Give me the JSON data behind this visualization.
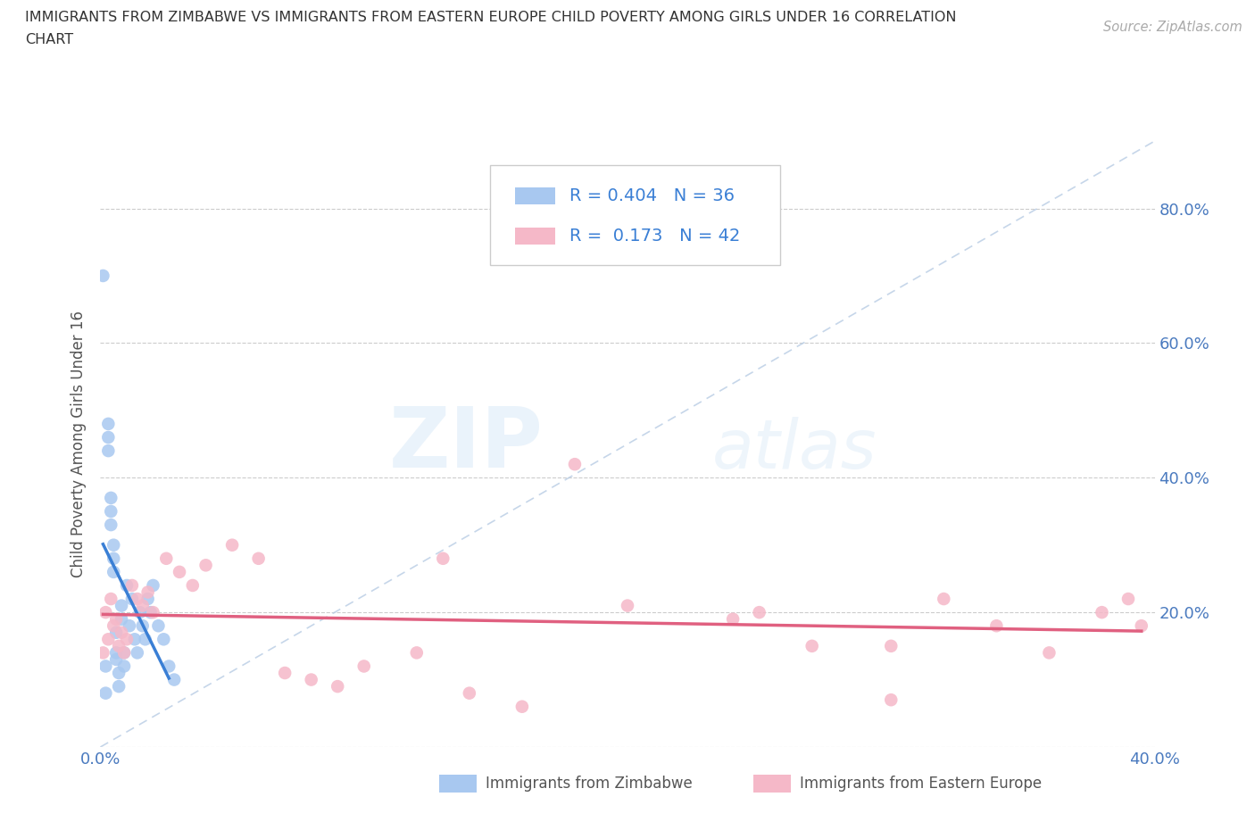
{
  "title_line1": "IMMIGRANTS FROM ZIMBABWE VS IMMIGRANTS FROM EASTERN EUROPE CHILD POVERTY AMONG GIRLS UNDER 16 CORRELATION",
  "title_line2": "CHART",
  "source": "Source: ZipAtlas.com",
  "ylabel": "Child Poverty Among Girls Under 16",
  "xlim": [
    0.0,
    0.4
  ],
  "ylim": [
    0.0,
    0.9
  ],
  "R_zim": 0.404,
  "N_zim": 36,
  "R_ee": 0.173,
  "N_ee": 42,
  "color_zim": "#a8c8f0",
  "color_ee": "#f5b8c8",
  "line_color_zim": "#3a7fd5",
  "line_color_ee": "#e06080",
  "diag_color": "#b8cce4",
  "watermark_zip": "ZIP",
  "watermark_atlas": "atlas",
  "zim_x": [
    0.001,
    0.002,
    0.002,
    0.003,
    0.003,
    0.003,
    0.004,
    0.004,
    0.004,
    0.005,
    0.005,
    0.005,
    0.006,
    0.006,
    0.006,
    0.007,
    0.007,
    0.008,
    0.008,
    0.009,
    0.009,
    0.01,
    0.011,
    0.012,
    0.013,
    0.014,
    0.015,
    0.016,
    0.017,
    0.018,
    0.019,
    0.02,
    0.022,
    0.024,
    0.026,
    0.028
  ],
  "zim_y": [
    0.7,
    0.08,
    0.12,
    0.46,
    0.44,
    0.48,
    0.35,
    0.33,
    0.37,
    0.28,
    0.26,
    0.3,
    0.14,
    0.13,
    0.17,
    0.09,
    0.11,
    0.21,
    0.19,
    0.14,
    0.12,
    0.24,
    0.18,
    0.22,
    0.16,
    0.14,
    0.2,
    0.18,
    0.16,
    0.22,
    0.2,
    0.24,
    0.18,
    0.16,
    0.12,
    0.1
  ],
  "ee_x": [
    0.001,
    0.002,
    0.003,
    0.004,
    0.005,
    0.006,
    0.007,
    0.008,
    0.009,
    0.01,
    0.012,
    0.014,
    0.016,
    0.018,
    0.02,
    0.025,
    0.03,
    0.035,
    0.04,
    0.05,
    0.06,
    0.07,
    0.08,
    0.09,
    0.1,
    0.12,
    0.14,
    0.16,
    0.2,
    0.24,
    0.27,
    0.3,
    0.32,
    0.34,
    0.36,
    0.38,
    0.39,
    0.395,
    0.3,
    0.25,
    0.18,
    0.13
  ],
  "ee_y": [
    0.14,
    0.2,
    0.16,
    0.22,
    0.18,
    0.19,
    0.15,
    0.17,
    0.14,
    0.16,
    0.24,
    0.22,
    0.21,
    0.23,
    0.2,
    0.28,
    0.26,
    0.24,
    0.27,
    0.3,
    0.28,
    0.11,
    0.1,
    0.09,
    0.12,
    0.14,
    0.08,
    0.06,
    0.21,
    0.19,
    0.15,
    0.07,
    0.22,
    0.18,
    0.14,
    0.2,
    0.22,
    0.18,
    0.15,
    0.2,
    0.42,
    0.28
  ]
}
